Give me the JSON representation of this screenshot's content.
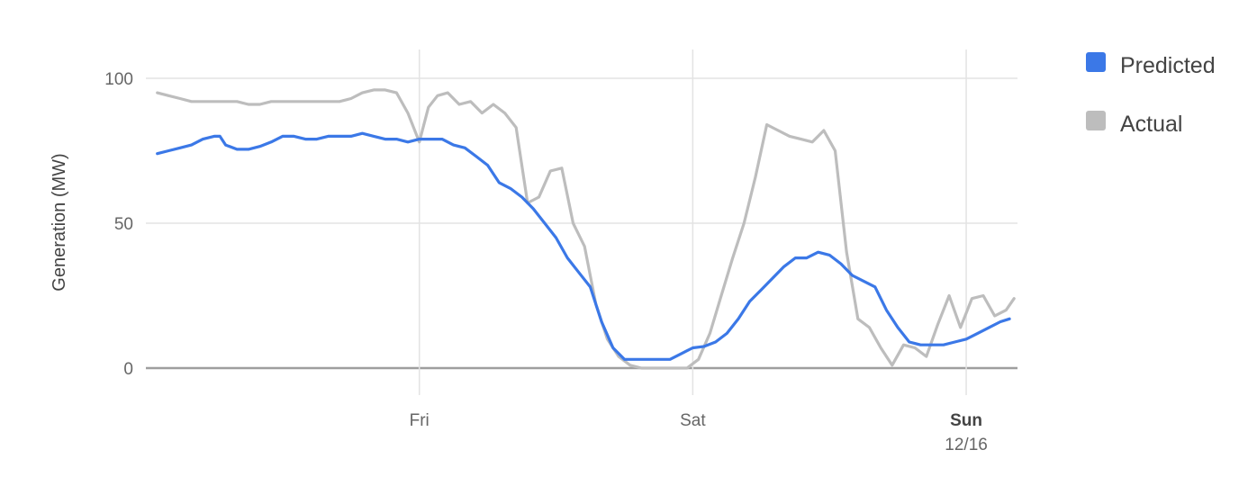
{
  "chart_data": {
    "type": "line",
    "ylabel": "Generation (MW)",
    "ylim": [
      0,
      100
    ],
    "yticks": [
      "0",
      "50",
      "100"
    ],
    "x_tick_labels": [
      {
        "x": 24,
        "label": "Fri"
      },
      {
        "x": 48,
        "label": "Sat"
      },
      {
        "x": 72,
        "label": "Sun",
        "sublabel": "12/16"
      }
    ],
    "grid": true,
    "legend_position": "right",
    "series": [
      {
        "name": "Predicted",
        "color": "#3b78e7",
        "points": [
          [
            1,
            74
          ],
          [
            2,
            75
          ],
          [
            3,
            76
          ],
          [
            4,
            77
          ],
          [
            5,
            79
          ],
          [
            6,
            80
          ],
          [
            6.5,
            80
          ],
          [
            7,
            77
          ],
          [
            8,
            75.5
          ],
          [
            9,
            75.5
          ],
          [
            10,
            76.5
          ],
          [
            11,
            78
          ],
          [
            12,
            80
          ],
          [
            13,
            80
          ],
          [
            14,
            79
          ],
          [
            15,
            79
          ],
          [
            16,
            80
          ],
          [
            17,
            80
          ],
          [
            18,
            80
          ],
          [
            19,
            81
          ],
          [
            20,
            80
          ],
          [
            21,
            79
          ],
          [
            22,
            79
          ],
          [
            23,
            78
          ],
          [
            24,
            79
          ],
          [
            25,
            79
          ],
          [
            26,
            79
          ],
          [
            27,
            77
          ],
          [
            28,
            76
          ],
          [
            29,
            73
          ],
          [
            30,
            70
          ],
          [
            31,
            64
          ],
          [
            32,
            62
          ],
          [
            33,
            59
          ],
          [
            34,
            55
          ],
          [
            35,
            50
          ],
          [
            36,
            45
          ],
          [
            37,
            38
          ],
          [
            38,
            33
          ],
          [
            39,
            28
          ],
          [
            40,
            16
          ],
          [
            41,
            7
          ],
          [
            42,
            3
          ],
          [
            43,
            3
          ],
          [
            44,
            3
          ],
          [
            45,
            3
          ],
          [
            46,
            3
          ],
          [
            47,
            5
          ],
          [
            48,
            7
          ],
          [
            49,
            7.5
          ],
          [
            50,
            9
          ],
          [
            51,
            12
          ],
          [
            52,
            17
          ],
          [
            53,
            23
          ],
          [
            54,
            27
          ],
          [
            55,
            31
          ],
          [
            56,
            35
          ],
          [
            57,
            38
          ],
          [
            58,
            38
          ],
          [
            59,
            40
          ],
          [
            60,
            39
          ],
          [
            61,
            36
          ],
          [
            62,
            32
          ],
          [
            63,
            30
          ],
          [
            64,
            28
          ],
          [
            65,
            20
          ],
          [
            66,
            14
          ],
          [
            67,
            9
          ],
          [
            68,
            8
          ],
          [
            69,
            8
          ],
          [
            70,
            8
          ],
          [
            71,
            9
          ],
          [
            72,
            10
          ],
          [
            73,
            12
          ],
          [
            74,
            14
          ],
          [
            75,
            16
          ],
          [
            75.8,
            17
          ]
        ]
      },
      {
        "name": "Actual",
        "color": "#bdbdbd",
        "points": [
          [
            1,
            95
          ],
          [
            2,
            94
          ],
          [
            3,
            93
          ],
          [
            4,
            92
          ],
          [
            5,
            92
          ],
          [
            6,
            92
          ],
          [
            7,
            92
          ],
          [
            8,
            92
          ],
          [
            9,
            91
          ],
          [
            10,
            91
          ],
          [
            11,
            92
          ],
          [
            12,
            92
          ],
          [
            13,
            92
          ],
          [
            14,
            92
          ],
          [
            15,
            92
          ],
          [
            16,
            92
          ],
          [
            17,
            92
          ],
          [
            18,
            93
          ],
          [
            19,
            95
          ],
          [
            20,
            96
          ],
          [
            21,
            96
          ],
          [
            22,
            95
          ],
          [
            23,
            88
          ],
          [
            24,
            78
          ],
          [
            24.8,
            90
          ],
          [
            25.6,
            94
          ],
          [
            26.5,
            95
          ],
          [
            27.5,
            91
          ],
          [
            28.5,
            92
          ],
          [
            29.5,
            88
          ],
          [
            30.5,
            91
          ],
          [
            31.5,
            88
          ],
          [
            32.5,
            83
          ],
          [
            33.5,
            57
          ],
          [
            34.5,
            59
          ],
          [
            35.5,
            68
          ],
          [
            36.5,
            69
          ],
          [
            37.5,
            50
          ],
          [
            38.5,
            42
          ],
          [
            39.5,
            22
          ],
          [
            40.5,
            10
          ],
          [
            41.5,
            4
          ],
          [
            42.5,
            1
          ],
          [
            43.5,
            0
          ],
          [
            44.5,
            0
          ],
          [
            45.5,
            0
          ],
          [
            46.5,
            0
          ],
          [
            47.5,
            0
          ],
          [
            48.5,
            3
          ],
          [
            49.5,
            12
          ],
          [
            50.5,
            25
          ],
          [
            51.5,
            38
          ],
          [
            52.5,
            50
          ],
          [
            53.5,
            66
          ],
          [
            54.5,
            84
          ],
          [
            55.5,
            82
          ],
          [
            56.5,
            80
          ],
          [
            57.5,
            79
          ],
          [
            58.5,
            78
          ],
          [
            59.5,
            82
          ],
          [
            60.5,
            75
          ],
          [
            61.5,
            40
          ],
          [
            62.5,
            17
          ],
          [
            63.5,
            14
          ],
          [
            64.5,
            7
          ],
          [
            65.5,
            1
          ],
          [
            66.5,
            8
          ],
          [
            67.5,
            7
          ],
          [
            68.5,
            4
          ],
          [
            69.5,
            15
          ],
          [
            70.5,
            25
          ],
          [
            71.5,
            14
          ],
          [
            72.5,
            24
          ],
          [
            73.5,
            25
          ],
          [
            74.5,
            18
          ],
          [
            75.5,
            20
          ],
          [
            76.2,
            24
          ]
        ]
      }
    ]
  }
}
